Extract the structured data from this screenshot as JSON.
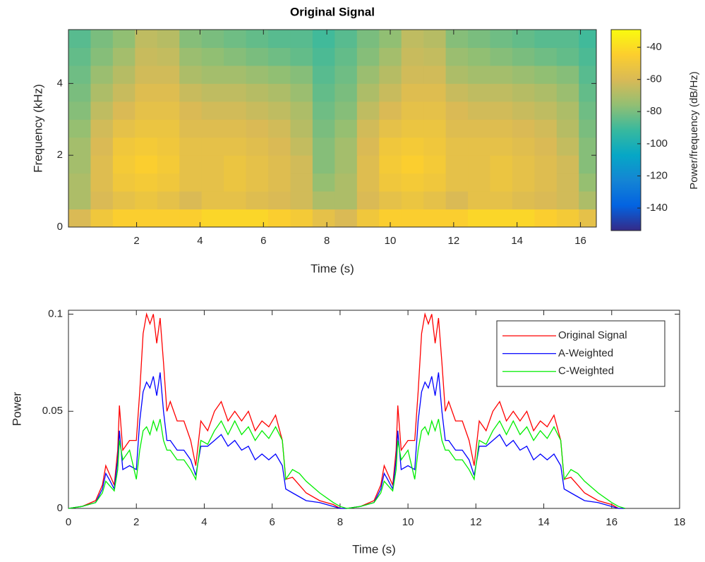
{
  "chart_data": [
    {
      "type": "heatmap",
      "title": "Original Signal",
      "xlabel": "Time (s)",
      "ylabel": "Frequency (kHz)",
      "colorbar_label": "Power/frequency (dB/Hz)",
      "x": [
        0.2,
        0.9,
        1.6,
        2.3,
        3.0,
        3.7,
        4.4,
        5.1,
        5.8,
        6.5,
        7.2,
        7.9,
        8.6,
        9.3,
        10.0,
        10.7,
        11.4,
        12.1,
        12.8,
        13.5,
        14.2,
        14.9,
        15.6,
        16.3
      ],
      "y": [
        0.25,
        0.75,
        1.25,
        1.75,
        2.25,
        2.75,
        3.25,
        3.75,
        4.25,
        4.75,
        5.25
      ],
      "z": [
        [
          -60,
          -50,
          -45,
          -45,
          -45,
          -45,
          -42,
          -42,
          -42,
          -45,
          -48,
          -55,
          -60,
          -50,
          -45,
          -45,
          -45,
          -45,
          -42,
          -42,
          -42,
          -45,
          -48,
          -55
        ],
        [
          -70,
          -60,
          -55,
          -52,
          -55,
          -60,
          -55,
          -55,
          -58,
          -60,
          -62,
          -70,
          -70,
          -60,
          -55,
          -52,
          -55,
          -60,
          -55,
          -55,
          -58,
          -60,
          -62,
          -70
        ],
        [
          -70,
          -58,
          -50,
          -48,
          -50,
          -55,
          -55,
          -52,
          -55,
          -58,
          -62,
          -75,
          -70,
          -58,
          -50,
          -48,
          -50,
          -55,
          -55,
          -52,
          -55,
          -58,
          -62,
          -75
        ],
        [
          -72,
          -58,
          -48,
          -45,
          -48,
          -55,
          -55,
          -52,
          -55,
          -58,
          -62,
          -78,
          -72,
          -58,
          -48,
          -45,
          -48,
          -55,
          -55,
          -52,
          -55,
          -58,
          -62,
          -78
        ],
        [
          -72,
          -60,
          -50,
          -48,
          -50,
          -55,
          -55,
          -55,
          -57,
          -60,
          -65,
          -78,
          -72,
          -60,
          -50,
          -48,
          -50,
          -55,
          -55,
          -55,
          -57,
          -60,
          -65,
          -78
        ],
        [
          -75,
          -62,
          -55,
          -52,
          -52,
          -58,
          -58,
          -58,
          -60,
          -62,
          -68,
          -80,
          -75,
          -62,
          -55,
          -52,
          -52,
          -58,
          -58,
          -58,
          -60,
          -62,
          -68,
          -80
        ],
        [
          -78,
          -66,
          -60,
          -55,
          -55,
          -60,
          -62,
          -62,
          -64,
          -66,
          -70,
          -82,
          -78,
          -66,
          -60,
          -55,
          -55,
          -60,
          -62,
          -62,
          -64,
          -66,
          -70,
          -82
        ],
        [
          -80,
          -70,
          -64,
          -58,
          -58,
          -64,
          -66,
          -66,
          -68,
          -70,
          -74,
          -84,
          -80,
          -70,
          -64,
          -58,
          -58,
          -64,
          -66,
          -66,
          -68,
          -70,
          -74,
          -84
        ],
        [
          -82,
          -74,
          -68,
          -62,
          -62,
          -70,
          -72,
          -72,
          -74,
          -76,
          -78,
          -86,
          -82,
          -74,
          -68,
          -62,
          -62,
          -70,
          -72,
          -72,
          -74,
          -76,
          -78,
          -86
        ],
        [
          -84,
          -78,
          -72,
          -64,
          -65,
          -74,
          -76,
          -78,
          -80,
          -82,
          -84,
          -88,
          -84,
          -78,
          -72,
          -64,
          -65,
          -74,
          -76,
          -78,
          -80,
          -82,
          -84,
          -88
        ],
        [
          -86,
          -80,
          -76,
          -66,
          -68,
          -78,
          -80,
          -82,
          -84,
          -86,
          -86,
          -90,
          -86,
          -80,
          -76,
          -66,
          -68,
          -78,
          -80,
          -82,
          -84,
          -86,
          -86,
          -90
        ]
      ],
      "xlim": [
        -0.15,
        16.5
      ],
      "xticks": [
        2,
        4,
        6,
        8,
        10,
        12,
        14,
        16
      ],
      "ylim": [
        0,
        5.5
      ],
      "yticks": [
        0,
        2,
        4
      ],
      "clim": [
        -154,
        -29
      ],
      "cticks": [
        -140,
        -120,
        -100,
        -80,
        -60,
        -40
      ],
      "colormap": [
        "#352a87",
        "#0363e1",
        "#1485d4",
        "#06a7c6",
        "#38b99e",
        "#92bf73",
        "#d9ba56",
        "#fcce2e",
        "#f9fb0e"
      ]
    },
    {
      "type": "line",
      "xlabel": "Time (s)",
      "ylabel": "Power",
      "x": [
        0,
        0.4,
        0.8,
        1.0,
        1.1,
        1.2,
        1.35,
        1.45,
        1.5,
        1.6,
        1.8,
        2.0,
        2.1,
        2.2,
        2.3,
        2.4,
        2.5,
        2.6,
        2.7,
        2.8,
        2.9,
        3.0,
        3.2,
        3.4,
        3.6,
        3.75,
        3.9,
        4.1,
        4.3,
        4.5,
        4.7,
        4.9,
        5.1,
        5.3,
        5.5,
        5.7,
        5.9,
        6.1,
        6.3,
        6.4,
        6.6,
        6.8,
        7.0,
        7.4,
        7.8,
        8.0,
        8.2,
        8.6,
        9.0,
        9.2,
        9.3,
        9.4,
        9.55,
        9.65,
        9.7,
        9.8,
        10.0,
        10.2,
        10.3,
        10.4,
        10.5,
        10.6,
        10.7,
        10.8,
        10.9,
        11.0,
        11.1,
        11.2,
        11.4,
        11.6,
        11.8,
        11.95,
        12.1,
        12.3,
        12.5,
        12.7,
        12.9,
        13.1,
        13.3,
        13.5,
        13.7,
        13.9,
        14.1,
        14.3,
        14.5,
        14.6,
        14.8,
        15.0,
        15.2,
        15.6,
        16.0,
        16.2,
        16.4
      ],
      "series": [
        {
          "name": "Original Signal",
          "color": "#ff0000",
          "values": [
            0,
            0.001,
            0.004,
            0.012,
            0.022,
            0.018,
            0.012,
            0.03,
            0.053,
            0.03,
            0.035,
            0.035,
            0.06,
            0.09,
            0.1,
            0.095,
            0.1,
            0.085,
            0.098,
            0.075,
            0.05,
            0.055,
            0.045,
            0.045,
            0.035,
            0.022,
            0.045,
            0.04,
            0.05,
            0.055,
            0.045,
            0.05,
            0.045,
            0.05,
            0.04,
            0.045,
            0.042,
            0.048,
            0.035,
            0.015,
            0.016,
            0.012,
            0.008,
            0.004,
            0.002,
            0,
            0,
            0.001,
            0.004,
            0.012,
            0.022,
            0.018,
            0.012,
            0.03,
            0.053,
            0.03,
            0.035,
            0.035,
            0.06,
            0.09,
            0.1,
            0.095,
            0.1,
            0.085,
            0.098,
            0.075,
            0.05,
            0.055,
            0.045,
            0.045,
            0.035,
            0.022,
            0.045,
            0.04,
            0.05,
            0.055,
            0.045,
            0.05,
            0.045,
            0.05,
            0.04,
            0.045,
            0.042,
            0.048,
            0.035,
            0.015,
            0.016,
            0.012,
            0.008,
            0.004,
            0.002,
            0,
            0
          ]
        },
        {
          "name": "A-Weighted",
          "color": "#0000ff",
          "values": [
            0,
            0.001,
            0.003,
            0.01,
            0.018,
            0.015,
            0.01,
            0.025,
            0.04,
            0.02,
            0.022,
            0.02,
            0.045,
            0.06,
            0.065,
            0.062,
            0.068,
            0.058,
            0.07,
            0.05,
            0.035,
            0.035,
            0.03,
            0.03,
            0.025,
            0.017,
            0.032,
            0.032,
            0.035,
            0.038,
            0.032,
            0.035,
            0.03,
            0.032,
            0.025,
            0.028,
            0.025,
            0.028,
            0.022,
            0.01,
            0.008,
            0.006,
            0.004,
            0.003,
            0.001,
            0,
            0,
            0.001,
            0.003,
            0.01,
            0.018,
            0.015,
            0.01,
            0.025,
            0.04,
            0.02,
            0.022,
            0.02,
            0.045,
            0.06,
            0.065,
            0.062,
            0.068,
            0.058,
            0.07,
            0.05,
            0.035,
            0.035,
            0.03,
            0.03,
            0.025,
            0.017,
            0.032,
            0.032,
            0.035,
            0.038,
            0.032,
            0.035,
            0.03,
            0.032,
            0.025,
            0.028,
            0.025,
            0.028,
            0.022,
            0.01,
            0.008,
            0.006,
            0.004,
            0.003,
            0.001,
            0,
            0
          ]
        },
        {
          "name": "C-Weighted",
          "color": "#00ee00",
          "values": [
            0,
            0.001,
            0.003,
            0.008,
            0.014,
            0.012,
            0.009,
            0.02,
            0.035,
            0.025,
            0.03,
            0.015,
            0.03,
            0.04,
            0.042,
            0.038,
            0.045,
            0.04,
            0.046,
            0.035,
            0.03,
            0.03,
            0.025,
            0.025,
            0.02,
            0.015,
            0.035,
            0.033,
            0.04,
            0.045,
            0.038,
            0.045,
            0.038,
            0.042,
            0.035,
            0.04,
            0.036,
            0.042,
            0.035,
            0.015,
            0.02,
            0.018,
            0.014,
            0.008,
            0.003,
            0.001,
            0,
            0.001,
            0.003,
            0.008,
            0.014,
            0.012,
            0.009,
            0.02,
            0.035,
            0.025,
            0.03,
            0.015,
            0.03,
            0.04,
            0.042,
            0.038,
            0.045,
            0.04,
            0.046,
            0.035,
            0.03,
            0.03,
            0.025,
            0.025,
            0.02,
            0.015,
            0.035,
            0.033,
            0.04,
            0.045,
            0.038,
            0.045,
            0.038,
            0.042,
            0.035,
            0.04,
            0.036,
            0.042,
            0.035,
            0.015,
            0.02,
            0.018,
            0.014,
            0.008,
            0.003,
            0.001,
            0
          ]
        }
      ],
      "xlim": [
        0,
        18
      ],
      "xticks": [
        0,
        2,
        4,
        6,
        8,
        10,
        12,
        14,
        16,
        18
      ],
      "ylim": [
        0,
        0.102
      ],
      "yticks": [
        0,
        0.05,
        0.1
      ],
      "legend": "upper right"
    }
  ]
}
